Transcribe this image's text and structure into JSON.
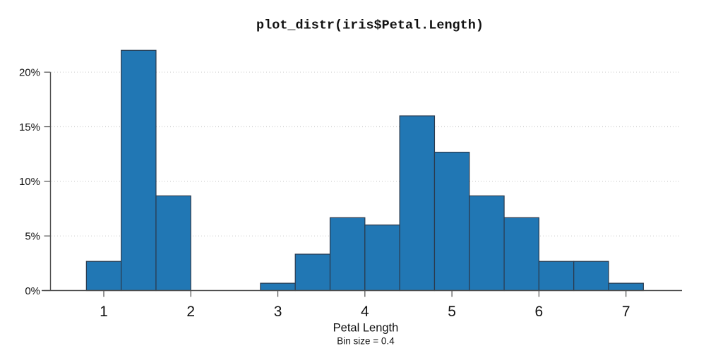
{
  "chart_data": {
    "type": "bar",
    "subtype": "histogram",
    "title": "plot_distr(iris$Petal.Length)",
    "xlabel": "Petal Length",
    "sublabel": "Bin size = 0.4",
    "bin_size": 0.4,
    "y_unit": "percent",
    "x_ticks": [
      1,
      2,
      3,
      4,
      5,
      6,
      7
    ],
    "y_ticks_percent": [
      0,
      5,
      10,
      15,
      20
    ],
    "y_tick_labels": [
      "0%",
      "5%",
      "10%",
      "15%",
      "20%"
    ],
    "ylim_percent": [
      0,
      20
    ],
    "xlim": [
      0.29,
      7.64
    ],
    "grid": "horizontal-dotted",
    "legend": "none",
    "bins": [
      {
        "from": 0.8,
        "to": 1.2,
        "percent": 2.67
      },
      {
        "from": 1.2,
        "to": 1.6,
        "percent": 22.0
      },
      {
        "from": 1.6,
        "to": 2.0,
        "percent": 8.67
      },
      {
        "from": 2.0,
        "to": 2.4,
        "percent": 0
      },
      {
        "from": 2.4,
        "to": 2.8,
        "percent": 0
      },
      {
        "from": 2.8,
        "to": 3.2,
        "percent": 0.67
      },
      {
        "from": 3.2,
        "to": 3.6,
        "percent": 3.33
      },
      {
        "from": 3.6,
        "to": 4.0,
        "percent": 6.67
      },
      {
        "from": 4.0,
        "to": 4.4,
        "percent": 6.0
      },
      {
        "from": 4.4,
        "to": 4.8,
        "percent": 16.0
      },
      {
        "from": 4.8,
        "to": 5.2,
        "percent": 12.67
      },
      {
        "from": 5.2,
        "to": 5.6,
        "percent": 8.67
      },
      {
        "from": 5.6,
        "to": 6.0,
        "percent": 6.67
      },
      {
        "from": 6.0,
        "to": 6.4,
        "percent": 2.67
      },
      {
        "from": 6.4,
        "to": 6.8,
        "percent": 2.67
      },
      {
        "from": 6.8,
        "to": 7.2,
        "percent": 0.67
      }
    ],
    "colors": {
      "bar_fill": "#2177b4",
      "bar_edge": "#2b3a4d",
      "axis": "#4d4d4d",
      "grid": "#d0d0d0",
      "text": "#111111",
      "background": "#ffffff"
    }
  }
}
